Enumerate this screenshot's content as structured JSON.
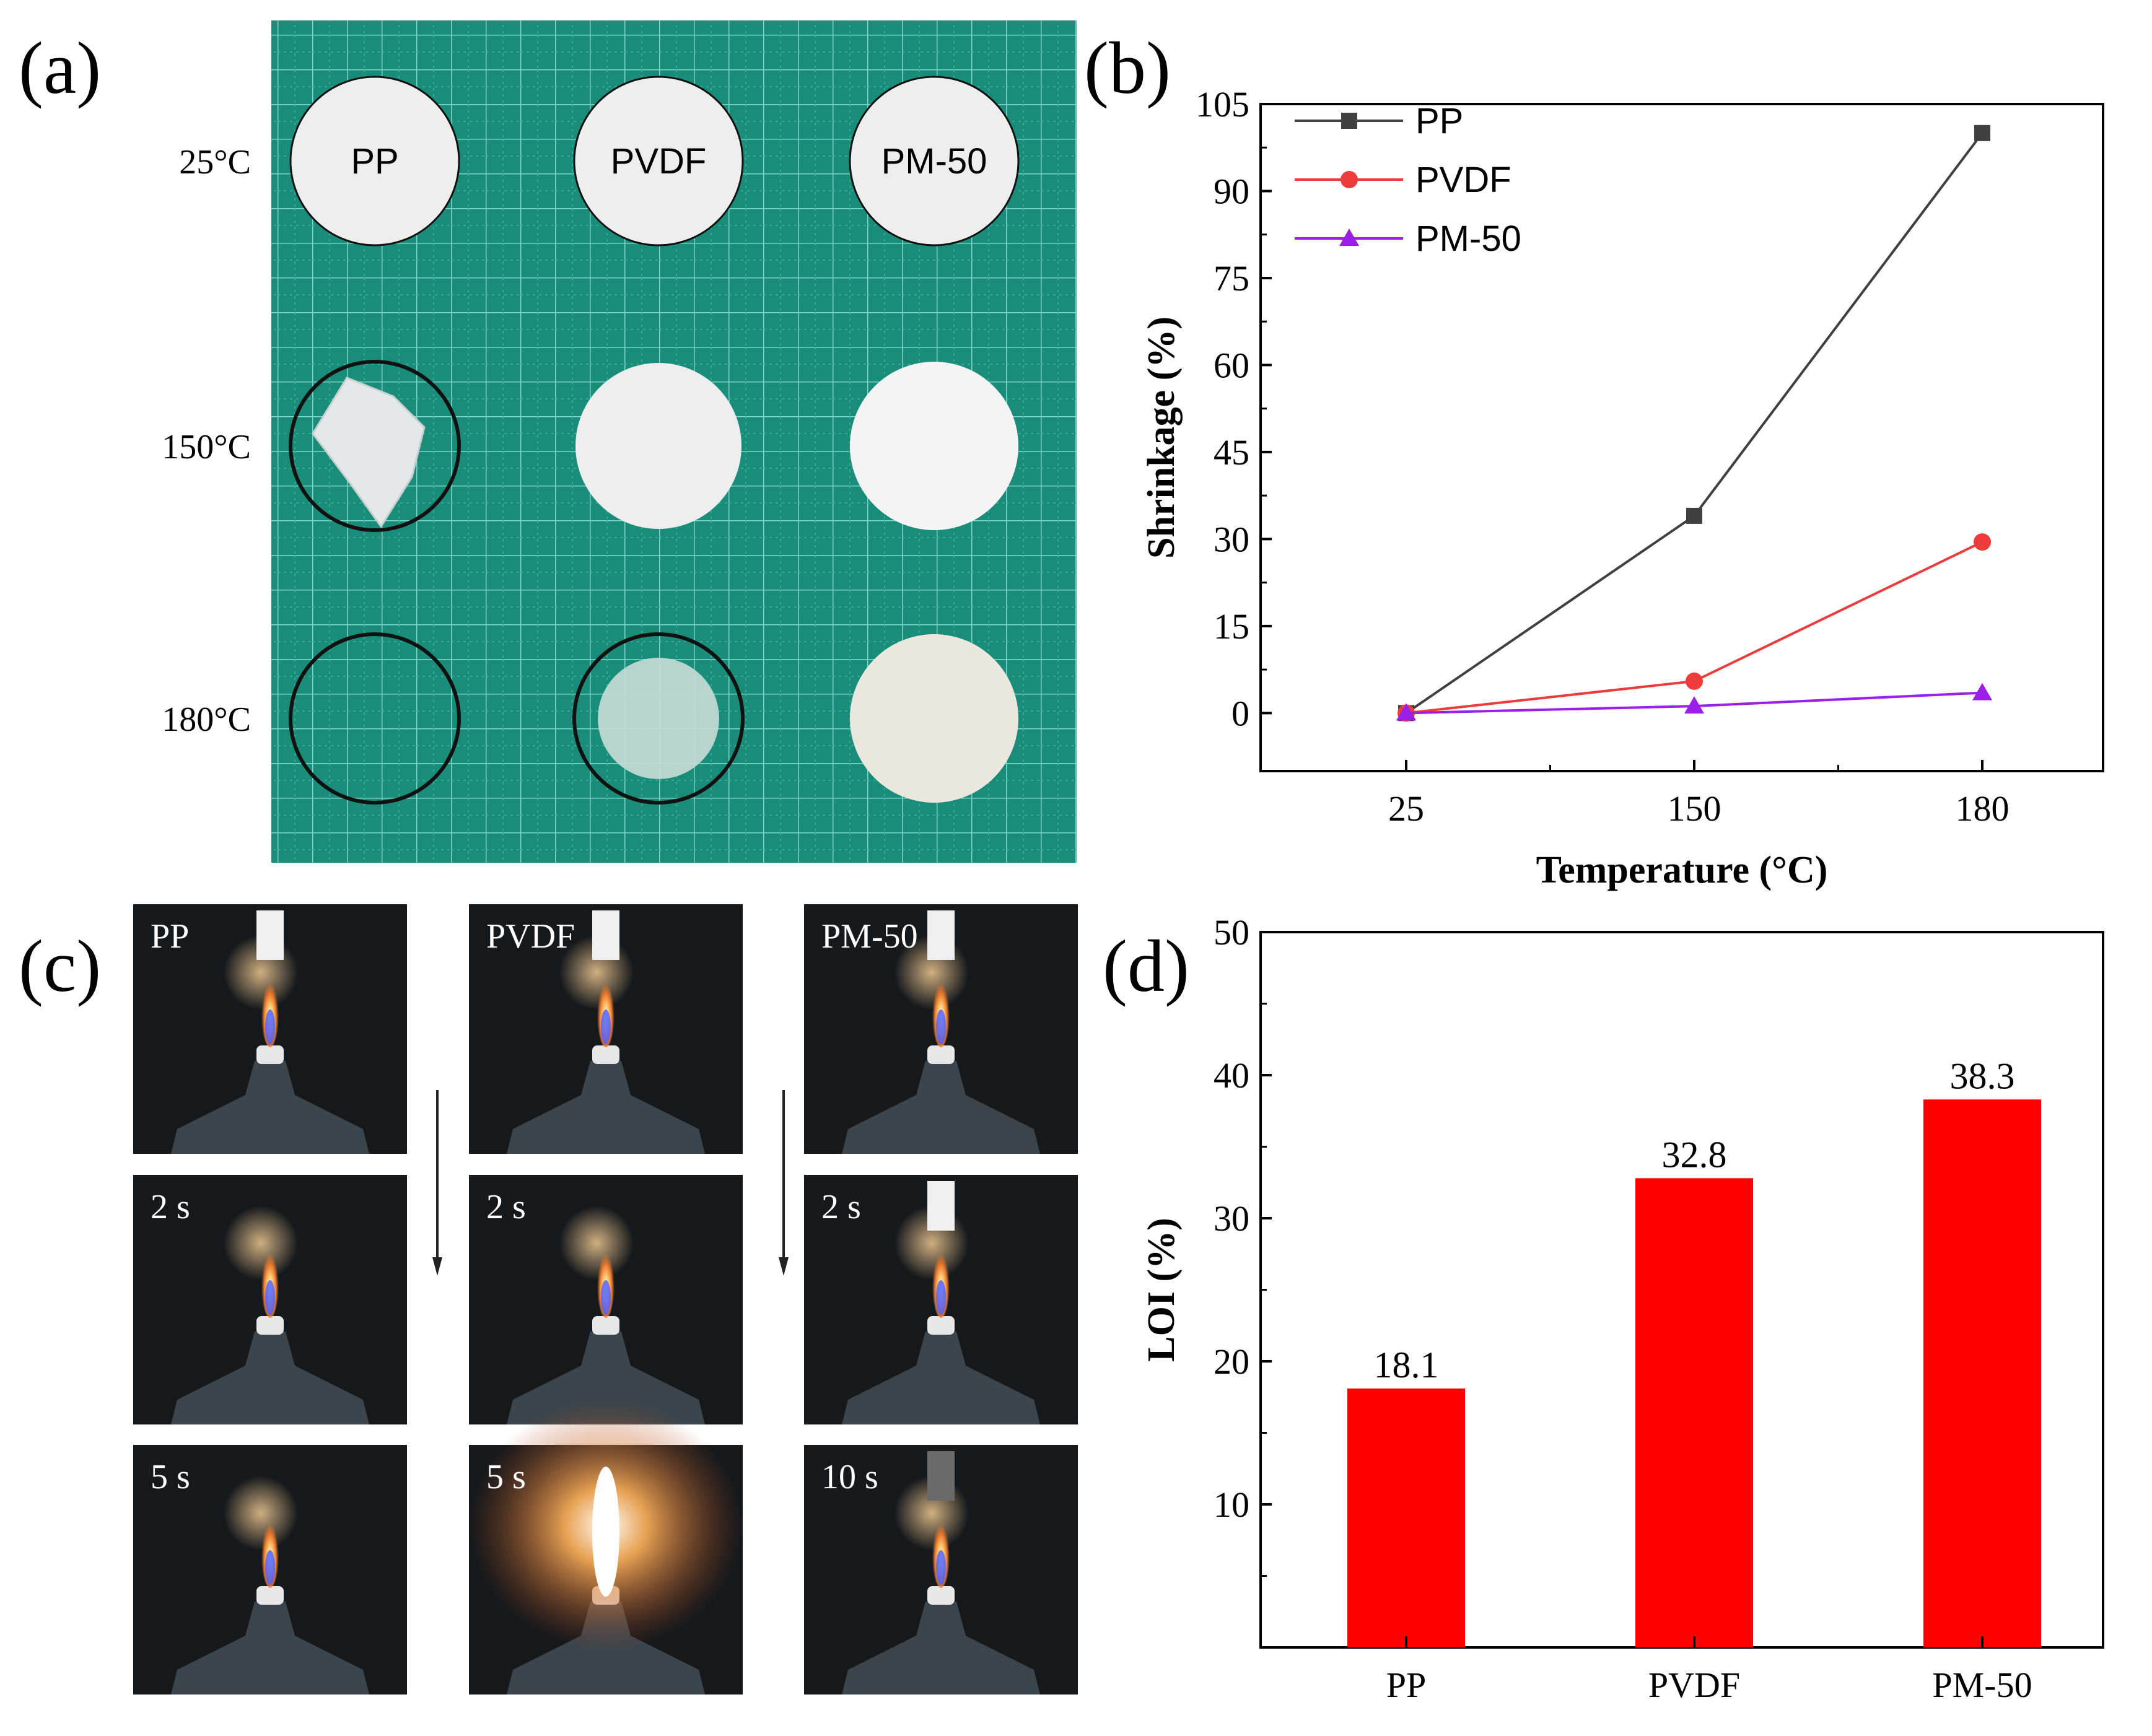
{
  "panels": {
    "a": {
      "label": "(a)"
    },
    "b": {
      "label": "(b)"
    },
    "c": {
      "label": "(c)"
    },
    "d": {
      "label": "(d)"
    }
  },
  "shrink_photo": {
    "temperatures": [
      "25°C",
      "150°C",
      "180°C"
    ],
    "samples": [
      "PP",
      "PVDF",
      "PM-50"
    ],
    "board_color": "#1a8c7a",
    "disc_color": "#eeeeee"
  },
  "burn_photo": {
    "columns": [
      {
        "frames": [
          "PP",
          "2 s",
          "5 s"
        ]
      },
      {
        "frames": [
          "PVDF",
          "2 s",
          "5 s"
        ]
      },
      {
        "frames": [
          "PM-50",
          "2 s",
          "10 s"
        ]
      }
    ]
  },
  "chart_data": [
    {
      "type": "line",
      "xlabel": "Temperature (°C)",
      "ylabel": "Shrinkage (%)",
      "categories": [
        "25",
        "150",
        "180"
      ],
      "ylim": [
        -10,
        105
      ],
      "yticks": [
        "0",
        "15",
        "30",
        "45",
        "60",
        "75",
        "90",
        "105"
      ],
      "legend_position": "top-left",
      "series": [
        {
          "name": "PP",
          "color": "#404040",
          "marker": "square",
          "values": [
            0,
            34,
            100
          ]
        },
        {
          "name": "PVDF",
          "color": "#ee3b3b",
          "marker": "circle",
          "values": [
            0,
            5.5,
            29.5
          ]
        },
        {
          "name": "PM-50",
          "color": "#9b1fe8",
          "marker": "triangle",
          "values": [
            0,
            1.2,
            3.5
          ]
        }
      ]
    },
    {
      "type": "bar",
      "xlabel": "",
      "ylabel": "LOI (%)",
      "categories": [
        "PP",
        "PVDF",
        "PM-50"
      ],
      "values": [
        18.1,
        32.8,
        38.3
      ],
      "data_labels": [
        "18.1",
        "32.8",
        "38.3"
      ],
      "ylim": [
        0,
        50
      ],
      "yticks": [
        "10",
        "20",
        "30",
        "40",
        "50"
      ],
      "bar_color": "#ff0000"
    }
  ]
}
